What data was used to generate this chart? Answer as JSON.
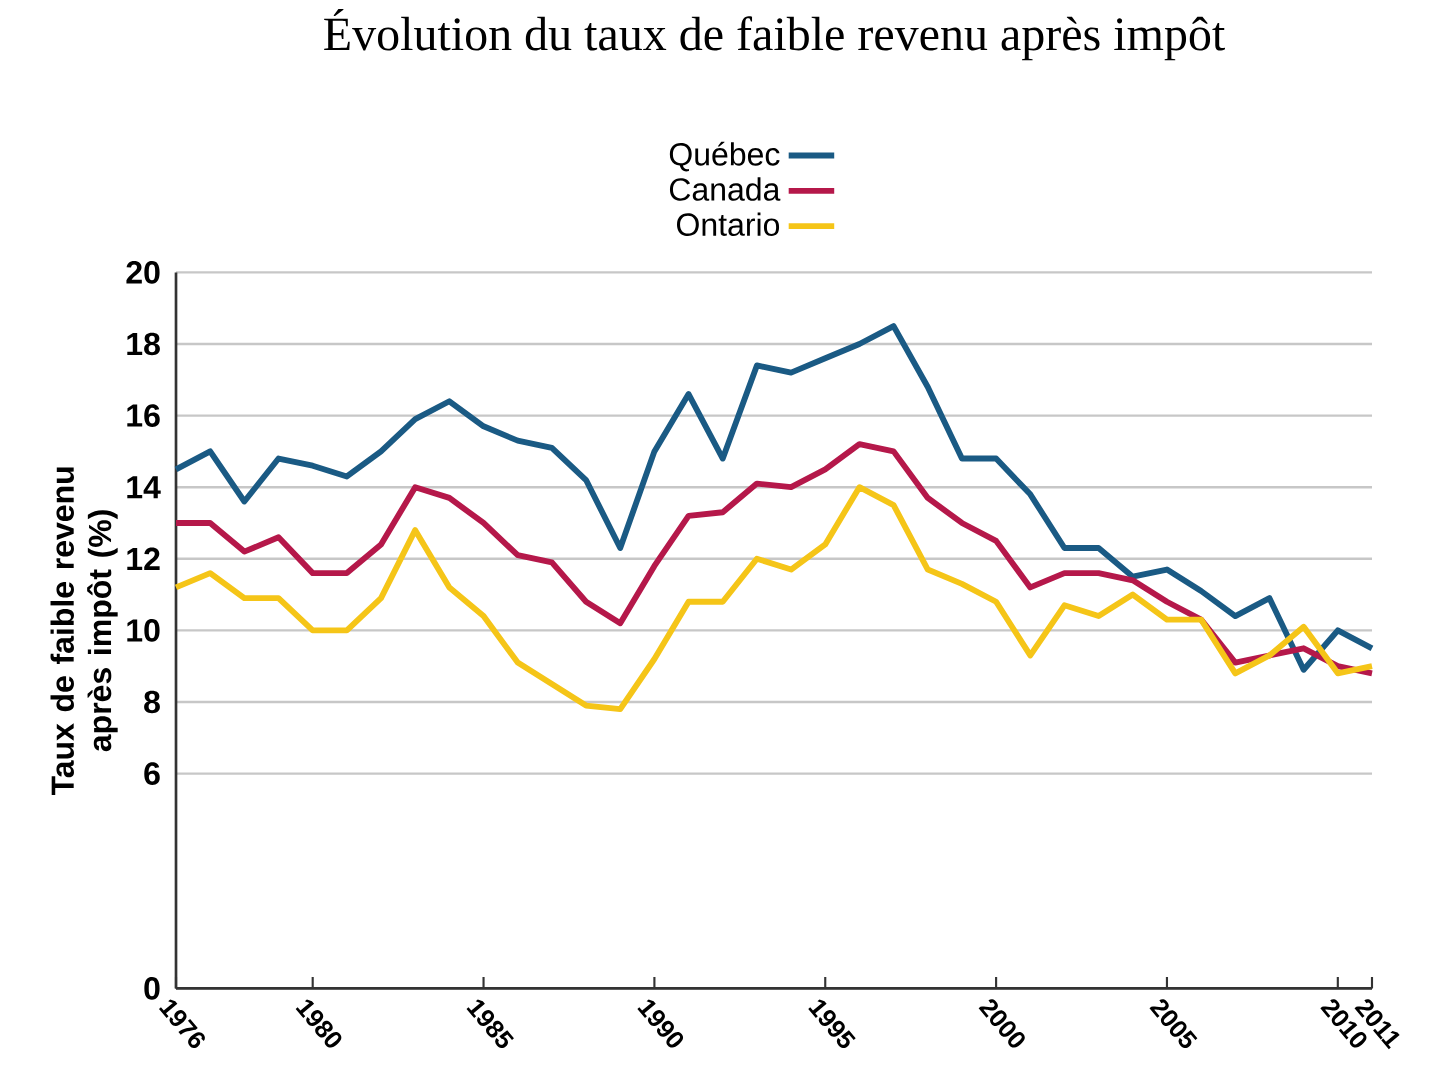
{
  "chart_data": {
    "type": "line",
    "title": "Évolution du taux de faible revenu après impôt",
    "ylabel": "Taux de faible revenu après impôt (%)",
    "x": [
      1976,
      1977,
      1978,
      1979,
      1980,
      1981,
      1982,
      1983,
      1984,
      1985,
      1986,
      1987,
      1988,
      1989,
      1990,
      1991,
      1992,
      1993,
      1994,
      1995,
      1996,
      1997,
      1998,
      1999,
      2000,
      2001,
      2002,
      2003,
      2004,
      2005,
      2006,
      2007,
      2008,
      2009,
      2010,
      2011
    ],
    "series": [
      {
        "name": "Québec",
        "color": "#1a5a84",
        "values": [
          14.5,
          15.0,
          13.6,
          14.8,
          14.6,
          14.3,
          15.0,
          15.9,
          16.4,
          15.7,
          15.3,
          15.1,
          14.2,
          12.3,
          15.0,
          16.6,
          14.8,
          17.4,
          17.2,
          17.6,
          18.0,
          18.5,
          16.8,
          14.8,
          14.8,
          13.8,
          12.3,
          12.3,
          11.5,
          11.7,
          11.1,
          10.4,
          10.9,
          8.9,
          10.0,
          9.5
        ]
      },
      {
        "name": "Canada",
        "color": "#b5184a",
        "values": [
          13.0,
          13.0,
          12.2,
          12.6,
          11.6,
          11.6,
          12.4,
          14.0,
          13.7,
          13.0,
          12.1,
          11.9,
          10.8,
          10.2,
          11.8,
          13.2,
          13.3,
          14.1,
          14.0,
          14.5,
          15.2,
          15.0,
          13.7,
          13.0,
          12.5,
          11.2,
          11.6,
          11.6,
          11.4,
          10.8,
          10.3,
          9.1,
          9.3,
          9.5,
          9.0,
          8.8
        ]
      },
      {
        "name": "Ontario",
        "color": "#f5c518",
        "values": [
          11.2,
          11.6,
          10.9,
          10.9,
          10.0,
          10.0,
          10.9,
          12.8,
          11.2,
          10.4,
          9.1,
          8.5,
          7.9,
          7.8,
          9.2,
          10.8,
          10.8,
          12.0,
          11.7,
          12.4,
          14.0,
          13.5,
          11.7,
          11.3,
          10.8,
          9.3,
          10.7,
          10.4,
          11.0,
          10.3,
          10.3,
          8.8,
          9.3,
          10.1,
          8.8,
          9.0
        ]
      }
    ],
    "xlim": [
      1976,
      2011
    ],
    "xticks": [
      1976,
      1980,
      1985,
      1990,
      1995,
      2000,
      2005,
      2010,
      2011
    ],
    "ylim": [
      0,
      20
    ],
    "yticks": [
      0,
      6,
      8,
      10,
      12,
      14,
      16,
      18,
      20
    ],
    "grid": "y",
    "legend": "top",
    "marker": "none",
    "line_style": "solid"
  }
}
